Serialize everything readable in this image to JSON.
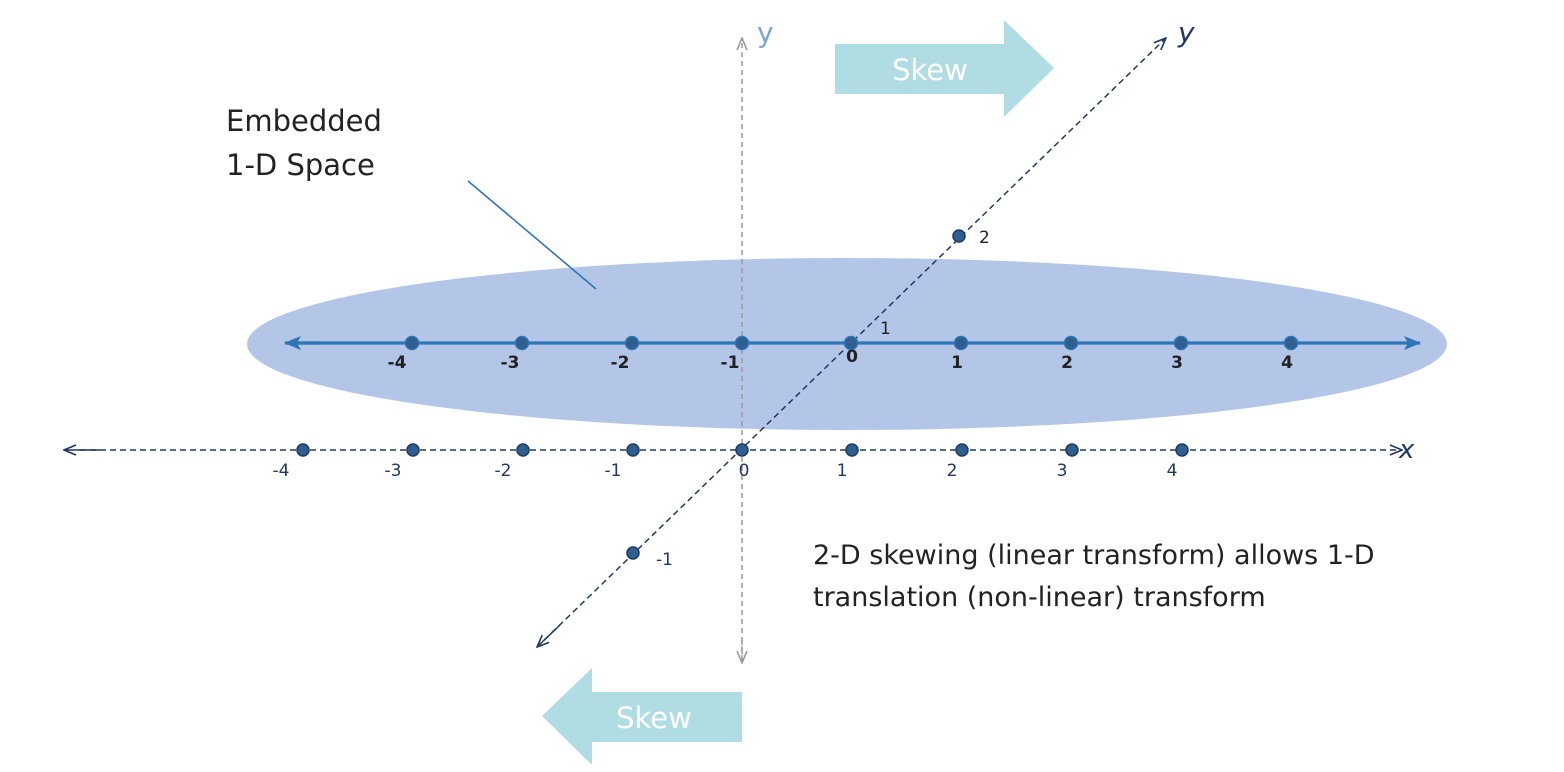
{
  "embedded_label": {
    "line1": "Embedded",
    "line2": "1-D Space"
  },
  "skew_top": {
    "label": "Skew"
  },
  "skew_bottom": {
    "label": "Skew"
  },
  "axes": {
    "vertical_y": "y",
    "skewed_y": "y",
    "x": "x"
  },
  "embedded_line": {
    "ticks": [
      "-4",
      "-3",
      "-2",
      "-1",
      "0",
      "1",
      "2",
      "3",
      "4"
    ]
  },
  "x_axis": {
    "ticks": [
      "-4",
      "-3",
      "-2",
      "-1",
      "0",
      "1",
      "2",
      "3",
      "4"
    ]
  },
  "skewed_axis": {
    "ticks": [
      "2",
      "1",
      "-1"
    ]
  },
  "description": {
    "line1": "2-D skewing (linear transform) allows 1-D",
    "line2": "translation (non-linear) transform"
  },
  "colors": {
    "ellipse": "#b4c6e7",
    "blue_line": "#2e75b6",
    "dark_navy": "#1f3864",
    "dot_fill": "#2e5f8f",
    "skew_arrow": "#b0dce4",
    "grey_axis": "#999999"
  }
}
